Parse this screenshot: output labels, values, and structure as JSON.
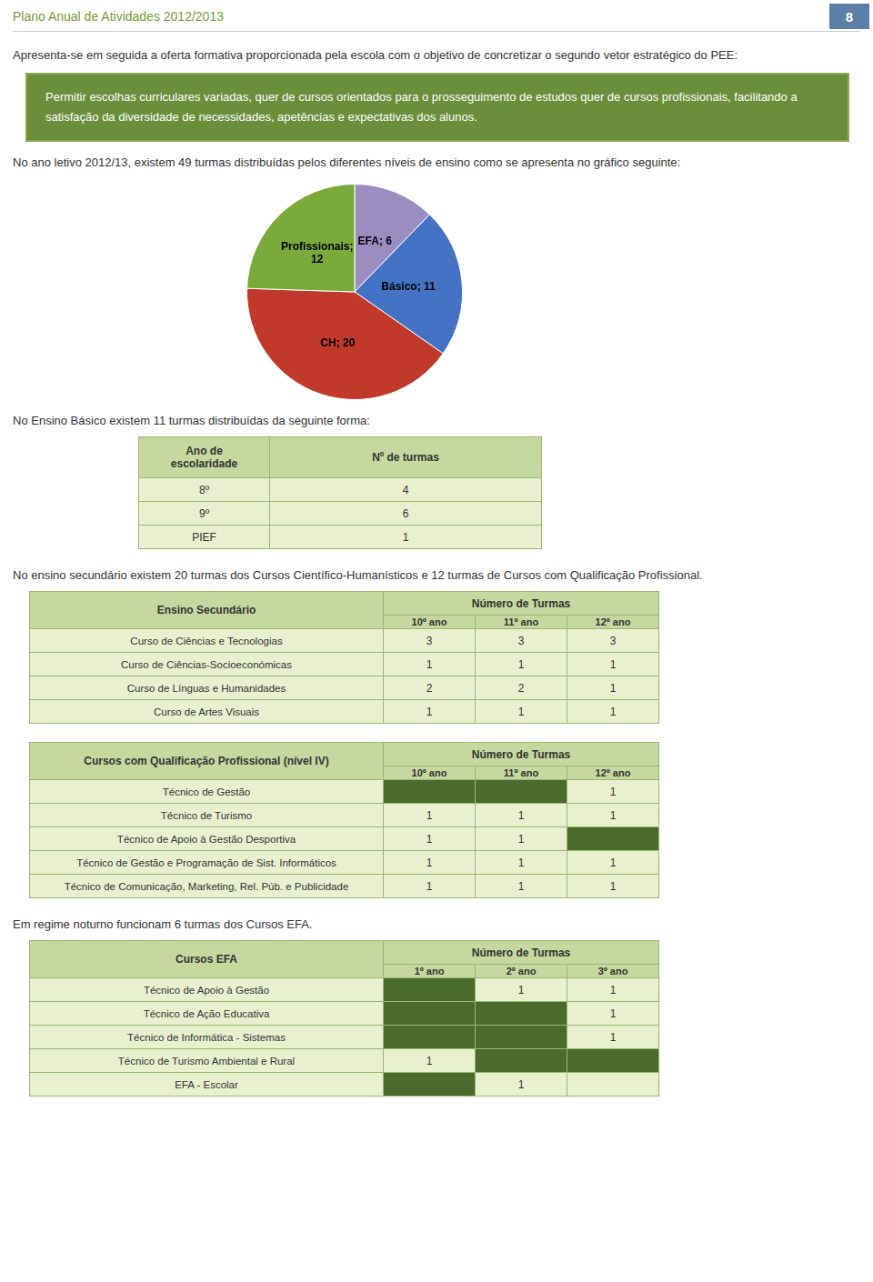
{
  "page_number": "8",
  "header": "Plano Anual de Atividades 2012/2013",
  "content": [
    {
      "kind": "paragraph",
      "text": "Apresenta-se em seguida a oferta formativa proporcionada pela escola com o objetivo de concretizar o segundo vetor estratégico do PEE:"
    },
    {
      "kind": "highlight",
      "text": "Permitir escolhas curriculares variadas, quer de cursos orientados para o prosseguimento de estudos quer de cursos profissionais, facilitando a satisfação da diversidade de necessidades, apetências e expectativas dos alunos."
    },
    {
      "kind": "paragraph",
      "text": "No ano letivo 2012/13, existem 49 turmas distribuídas pelos diferentes níveis de ensino como se apresenta no gráfico seguinte:"
    },
    {
      "kind": "chart"
    },
    {
      "kind": "paragraph",
      "text": "No Ensino Básico existem 11 turmas distribuídas da seguinte forma:"
    },
    {
      "kind": "table",
      "header": [
        "Ano de\nescolaridade",
        "Nº de turmas"
      ],
      "rows": [
        [
          "8º",
          "4"
        ],
        [
          "9º",
          "6"
        ],
        [
          "PIEF",
          "1"
        ]
      ]
    },
    {
      "kind": "paragraph",
      "text": "No ensino secundário existem 20 turmas dos Cursos Científico-Humanísticos e 12 turmas de Cursos com Qualificação Profissional."
    },
    {
      "kind": "table",
      "title": "Ensino Secundário",
      "subheader": "Número de Turmas",
      "cols": [
        "10º ano",
        "11º ano",
        "12º ano"
      ],
      "rows": [
        [
          "Curso de Ciências e Tecnologias",
          "3",
          "3",
          "3"
        ],
        [
          "Curso de Ciências-Socioeconómicas",
          "1",
          "1",
          "1"
        ],
        [
          "Curso de Línguas e Humanidades",
          "2",
          "2",
          "1"
        ],
        [
          "Curso de Artes Visuais",
          "1",
          "1",
          "1"
        ]
      ]
    },
    {
      "kind": "table",
      "title": "Cursos com Qualificação Profissional (nível IV)",
      "subheader": "Número de Turmas",
      "cols": [
        "10º ano",
        "11º ano",
        "12º ano"
      ],
      "rows": [
        [
          "Técnico de Gestão",
          null,
          null,
          "1"
        ],
        [
          "Técnico de Turismo",
          "1",
          "1",
          "1"
        ],
        [
          "Técnico de Apoio à Gestão Desportiva",
          "1",
          "1",
          null
        ],
        [
          "Técnico de Gestão e Programação de Sist. Informáticos",
          "1",
          "1",
          "1"
        ],
        [
          "Técnico de Comunicação, Marketing, Rel. Púb. e Publicidade",
          "1",
          "1",
          "1"
        ]
      ],
      "shaded": [
        [
          0,
          0
        ],
        [
          0,
          1
        ],
        [
          2,
          2
        ]
      ]
    },
    {
      "kind": "paragraph",
      "text": "Em regime noturno funcionam 6 turmas dos Cursos EFA."
    },
    {
      "kind": "table",
      "title": "Cursos EFA",
      "subheader": "Número de Turmas",
      "cols": [
        "1º ano",
        "2º ano",
        "3º ano"
      ],
      "rows": [
        [
          "Técnico de Apoio à Gestão",
          null,
          "1",
          "1"
        ],
        [
          "Técnico de Ação Educativa",
          null,
          null,
          "1"
        ],
        [
          "Técnico de Informática - Sistemas",
          null,
          null,
          "1"
        ],
        [
          "Técnico de Turismo Ambiental e Rural",
          "1",
          null,
          null
        ],
        [
          "EFA - Escolar",
          null,
          "1",
          null
        ]
      ],
      "shaded": [
        [
          0,
          0
        ],
        [
          1,
          0
        ],
        [
          2,
          0
        ],
        [
          4,
          0
        ],
        [
          1,
          1
        ],
        [
          2,
          1
        ],
        [
          3,
          1
        ],
        [
          3,
          2
        ]
      ]
    }
  ],
  "chart_data": {
    "type": "pie",
    "categories": [
      "EFA",
      "Básico",
      "CH",
      "Profissionais"
    ],
    "values": [
      6,
      11,
      20,
      12
    ],
    "value_labels": [
      "EFA; 6",
      "Básico; 11",
      "CH; 20",
      "Profissionais;\n12"
    ],
    "colors": [
      "#9b8dc0",
      "#4472c4",
      "#c0392b",
      "#7aaa3a"
    ],
    "data_labels": true
  }
}
